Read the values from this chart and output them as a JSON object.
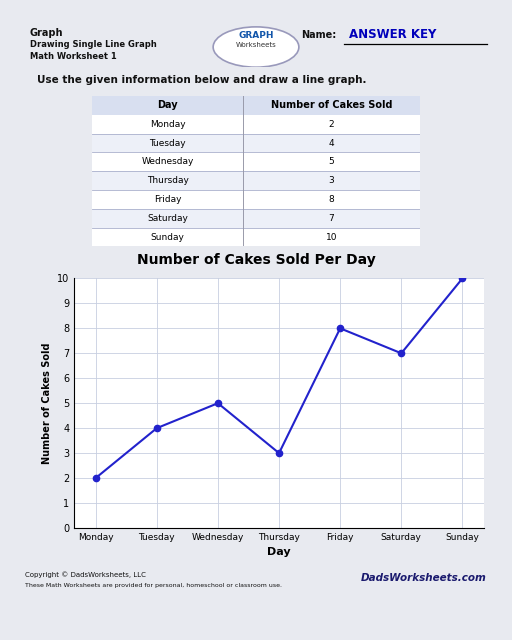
{
  "title": "Graph",
  "subtitle1": "Drawing Single Line Graph",
  "subtitle2": "Math Worksheet 1",
  "name_label": "Name:",
  "answer_key": "ANSWER KEY",
  "instruction": "Use the given information below and draw a line graph.",
  "table_headers": [
    "Day",
    "Number of Cakes Sold"
  ],
  "days": [
    "Monday",
    "Tuesday",
    "Wednesday",
    "Thursday",
    "Friday",
    "Saturday",
    "Sunday"
  ],
  "values": [
    2,
    4,
    5,
    3,
    8,
    7,
    10
  ],
  "chart_title": "Number of Cakes Sold Per Day",
  "xlabel": "Day",
  "ylabel": "Number of Cakes Sold",
  "ylim": [
    0,
    10
  ],
  "yticks": [
    0,
    1,
    2,
    3,
    4,
    5,
    6,
    7,
    8,
    9,
    10
  ],
  "line_color": "#2222cc",
  "marker": "o",
  "marker_color": "#2222cc",
  "bg_color": "#ffffff",
  "page_bg": "#e8eaf0",
  "copyright": "Copyright © DadsWorksheets, LLC",
  "copyright2": "These Math Worksheets are provided for personal, homeschool or classroom use.",
  "grid_color": "#c8cfe0"
}
